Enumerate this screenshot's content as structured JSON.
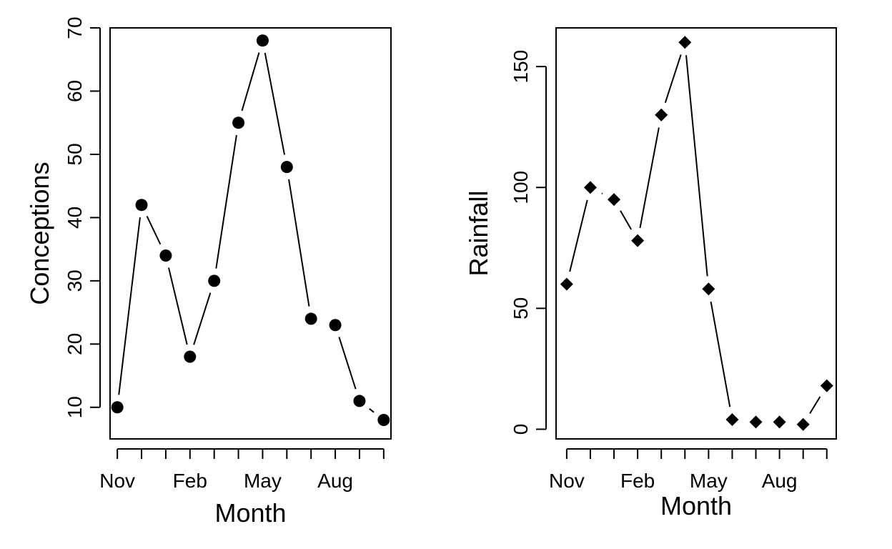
{
  "chart_data": [
    {
      "type": "line",
      "marker": "circle",
      "title": "",
      "xlabel": "Month",
      "ylabel": "Conceptions",
      "x": [
        1,
        2,
        3,
        4,
        5,
        6,
        7,
        8,
        9,
        10,
        11,
        12
      ],
      "values": [
        10,
        42,
        34,
        18,
        30,
        55,
        68,
        48,
        24,
        23,
        11,
        8
      ],
      "xlim": [
        0.7,
        12.3
      ],
      "ylim": [
        5,
        70
      ],
      "x_ticks": [
        1,
        2,
        3,
        4,
        5,
        6,
        7,
        8,
        9,
        10,
        11,
        12
      ],
      "x_tick_labels": [
        {
          "x": 1,
          "label": "Nov"
        },
        {
          "x": 4,
          "label": "Feb"
        },
        {
          "x": 7,
          "label": "May"
        },
        {
          "x": 10,
          "label": "Aug"
        }
      ],
      "y_ticks": [
        10,
        20,
        30,
        40,
        50,
        60,
        70
      ],
      "y_tick_labels": [
        "10",
        "20",
        "30",
        "40",
        "50",
        "60",
        "70"
      ],
      "grid": false
    },
    {
      "type": "line",
      "marker": "diamond",
      "title": "",
      "xlabel": "Month",
      "ylabel": "Rainfall",
      "x": [
        1,
        2,
        3,
        4,
        5,
        6,
        7,
        8,
        9,
        10,
        11,
        12
      ],
      "values": [
        60,
        100,
        95,
        78,
        130,
        160,
        58,
        4,
        3,
        3,
        2,
        18
      ],
      "xlim": [
        0.55,
        12.4
      ],
      "ylim": [
        -4,
        166
      ],
      "x_ticks": [
        1,
        2,
        3,
        4,
        5,
        6,
        7,
        8,
        9,
        10,
        11,
        12
      ],
      "x_tick_labels": [
        {
          "x": 1,
          "label": "Nov"
        },
        {
          "x": 4,
          "label": "Feb"
        },
        {
          "x": 7,
          "label": "May"
        },
        {
          "x": 10,
          "label": "Aug"
        }
      ],
      "y_ticks": [
        0,
        50,
        100,
        150
      ],
      "y_tick_labels": [
        "0",
        "50",
        "100",
        "150"
      ],
      "grid": false
    }
  ]
}
